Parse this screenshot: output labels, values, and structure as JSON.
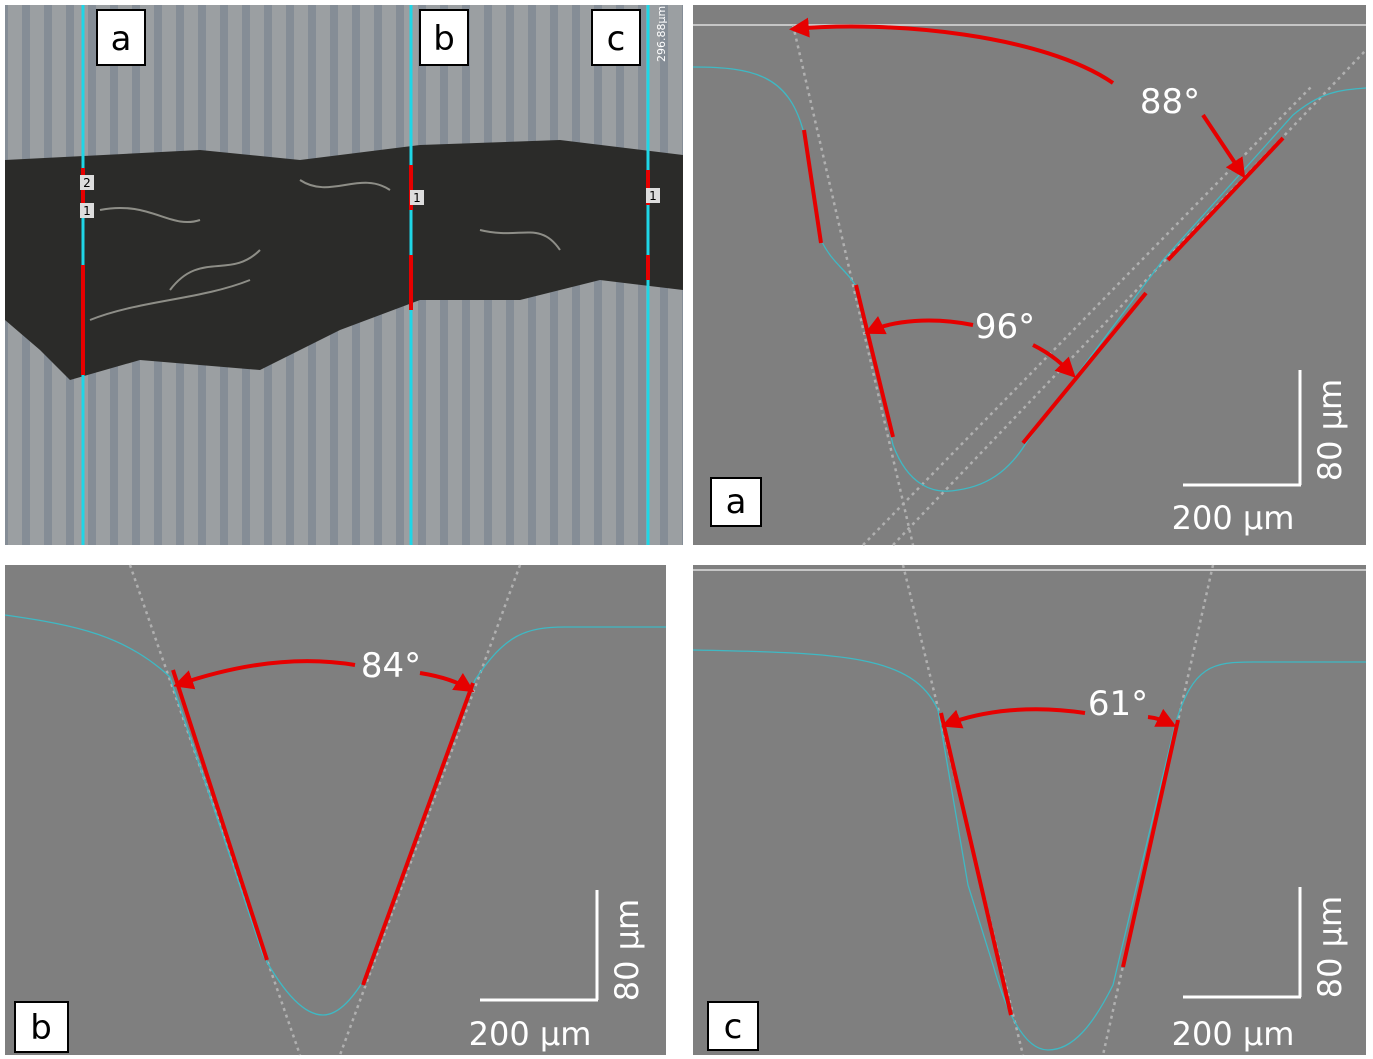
{
  "micrograph": {
    "labels": [
      "a",
      "b",
      "c"
    ],
    "scale_text": "296.88µm",
    "markers": [
      "2",
      "1",
      "1",
      "1"
    ]
  },
  "profiles": [
    {
      "label": "a",
      "angles": [
        "88°",
        "96°"
      ],
      "scale_x": "200 µm",
      "scale_y": "80 µm"
    },
    {
      "label": "b",
      "angles": [
        "84°"
      ],
      "scale_x": "200 µm",
      "scale_y": "80 µm"
    },
    {
      "label": "c",
      "angles": [
        "61°"
      ],
      "scale_x": "200 µm",
      "scale_y": "80 µm"
    }
  ]
}
